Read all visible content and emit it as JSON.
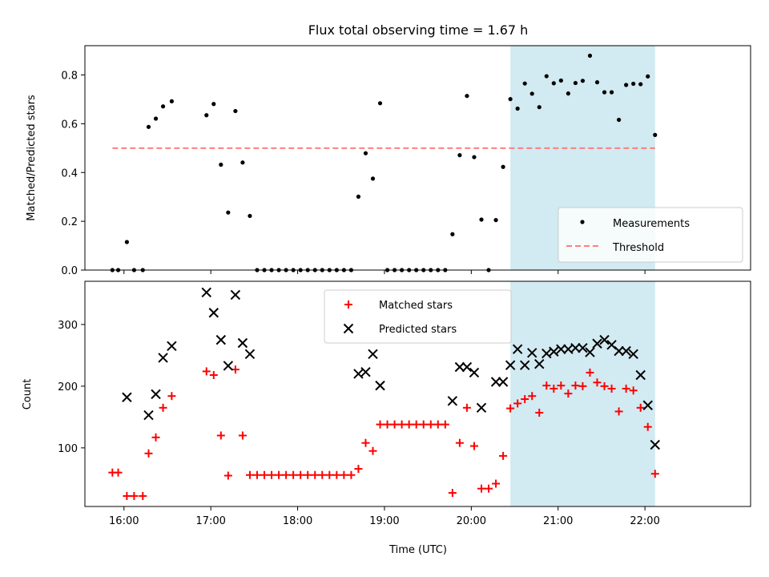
{
  "title": "Flux total observing time = 1.67 h",
  "colors": {
    "measurement": "#000000",
    "threshold": "#ff7f7f",
    "matched": "#ff0000",
    "predicted": "#000000",
    "highlight": "#add8e6"
  },
  "chart_data": [
    {
      "type": "scatter",
      "panel": "top",
      "ylabel": "Matched/Predicted stars",
      "ylim": [
        0,
        0.92
      ],
      "yticks": [
        0.0,
        0.2,
        0.4,
        0.6,
        0.8
      ],
      "ytick_labels": [
        "0.0",
        "0.2",
        "0.4",
        "0.6",
        "0.8"
      ],
      "legend_position": "lower right",
      "highlight_span": [
        "20:27",
        "22:07"
      ],
      "series": [
        {
          "name": "Measurements",
          "marker": "dot",
          "points": [
            [
              "15:52",
              0.0
            ],
            [
              "15:56",
              0.0
            ],
            [
              "16:02",
              0.115
            ],
            [
              "16:07",
              0.0
            ],
            [
              "16:13",
              0.0
            ],
            [
              "16:17",
              0.587
            ],
            [
              "16:22",
              0.621
            ],
            [
              "16:27",
              0.671
            ],
            [
              "16:33",
              0.692
            ],
            [
              "16:57",
              0.635
            ],
            [
              "17:02",
              0.681
            ],
            [
              "17:07",
              0.432
            ],
            [
              "17:12",
              0.236
            ],
            [
              "17:17",
              0.652
            ],
            [
              "17:22",
              0.441
            ],
            [
              "17:27",
              0.222
            ],
            [
              "17:32",
              0.0
            ],
            [
              "17:37",
              0.0
            ],
            [
              "17:42",
              0.0
            ],
            [
              "17:47",
              0.0
            ],
            [
              "17:52",
              0.0
            ],
            [
              "17:57",
              0.0
            ],
            [
              "18:02",
              0.0
            ],
            [
              "18:07",
              0.0
            ],
            [
              "18:12",
              0.0
            ],
            [
              "18:17",
              0.0
            ],
            [
              "18:22",
              0.0
            ],
            [
              "18:27",
              0.0
            ],
            [
              "18:32",
              0.0
            ],
            [
              "18:37",
              0.0
            ],
            [
              "18:42",
              0.301
            ],
            [
              "18:47",
              0.479
            ],
            [
              "18:52",
              0.375
            ],
            [
              "18:57",
              0.684
            ],
            [
              "19:02",
              0.0
            ],
            [
              "19:07",
              0.0
            ],
            [
              "19:12",
              0.0
            ],
            [
              "19:17",
              0.0
            ],
            [
              "19:22",
              0.0
            ],
            [
              "19:27",
              0.0
            ],
            [
              "19:32",
              0.0
            ],
            [
              "19:37",
              0.0
            ],
            [
              "19:42",
              0.0
            ],
            [
              "19:47",
              0.147
            ],
            [
              "19:52",
              0.471
            ],
            [
              "19:57",
              0.714
            ],
            [
              "20:02",
              0.463
            ],
            [
              "20:07",
              0.207
            ],
            [
              "20:12",
              0.0
            ],
            [
              "20:17",
              0.205
            ],
            [
              "20:22",
              0.423
            ],
            [
              "20:27",
              0.701
            ],
            [
              "20:32",
              0.662
            ],
            [
              "20:37",
              0.765
            ],
            [
              "20:42",
              0.723
            ],
            [
              "20:47",
              0.668
            ],
            [
              "20:52",
              0.795
            ],
            [
              "20:57",
              0.766
            ],
            [
              "21:02",
              0.777
            ],
            [
              "21:07",
              0.724
            ],
            [
              "21:12",
              0.767
            ],
            [
              "21:17",
              0.776
            ],
            [
              "21:22",
              0.879
            ],
            [
              "21:27",
              0.77
            ],
            [
              "21:32",
              0.729
            ],
            [
              "21:37",
              0.729
            ],
            [
              "21:42",
              0.616
            ],
            [
              "21:47",
              0.759
            ],
            [
              "21:52",
              0.764
            ],
            [
              "21:57",
              0.762
            ],
            [
              "22:02",
              0.794
            ],
            [
              "22:07",
              0.554
            ]
          ]
        },
        {
          "name": "Threshold",
          "style": "dashed",
          "points": [
            [
              "15:52",
              0.5
            ],
            [
              "22:07",
              0.5
            ]
          ]
        }
      ]
    },
    {
      "type": "scatter",
      "panel": "bottom",
      "ylabel": "Count",
      "xlabel": "Time (UTC)",
      "ylim": [
        5,
        370
      ],
      "yticks": [
        100,
        200,
        300
      ],
      "ytick_labels": [
        "100",
        "200",
        "300"
      ],
      "xlim": [
        "15:33",
        "23:13"
      ],
      "xticks": [
        "16:00",
        "17:00",
        "18:00",
        "19:00",
        "20:00",
        "21:00",
        "22:00"
      ],
      "xtick_labels": [
        "16:00",
        "17:00",
        "18:00",
        "19:00",
        "20:00",
        "21:00",
        "22:00"
      ],
      "legend_position": "upper center",
      "highlight_span": [
        "20:27",
        "22:07"
      ],
      "series": [
        {
          "name": "Matched stars",
          "marker": "plus",
          "points": [
            [
              "15:52",
              60
            ],
            [
              "15:56",
              60
            ],
            [
              "16:02",
              22
            ],
            [
              "16:07",
              22
            ],
            [
              "16:13",
              22
            ],
            [
              "16:17",
              91
            ],
            [
              "16:22",
              117
            ],
            [
              "16:27",
              165
            ],
            [
              "16:33",
              184
            ],
            [
              "16:57",
              224
            ],
            [
              "17:02",
              218
            ],
            [
              "17:07",
              120
            ],
            [
              "17:12",
              55
            ],
            [
              "17:17",
              227
            ],
            [
              "17:22",
              120
            ],
            [
              "17:27",
              56
            ],
            [
              "17:32",
              56
            ],
            [
              "17:37",
              56
            ],
            [
              "17:42",
              56
            ],
            [
              "17:47",
              56
            ],
            [
              "17:52",
              56
            ],
            [
              "17:57",
              56
            ],
            [
              "18:02",
              56
            ],
            [
              "18:07",
              56
            ],
            [
              "18:12",
              56
            ],
            [
              "18:17",
              56
            ],
            [
              "18:22",
              56
            ],
            [
              "18:27",
              56
            ],
            [
              "18:32",
              56
            ],
            [
              "18:37",
              56
            ],
            [
              "18:42",
              66
            ],
            [
              "18:47",
              108
            ],
            [
              "18:52",
              95
            ],
            [
              "18:57",
              138
            ],
            [
              "19:02",
              138
            ],
            [
              "19:07",
              138
            ],
            [
              "19:12",
              138
            ],
            [
              "19:17",
              138
            ],
            [
              "19:22",
              138
            ],
            [
              "19:27",
              138
            ],
            [
              "19:32",
              138
            ],
            [
              "19:37",
              138
            ],
            [
              "19:42",
              138
            ],
            [
              "19:47",
              27
            ],
            [
              "19:52",
              108
            ],
            [
              "19:57",
              165
            ],
            [
              "20:02",
              103
            ],
            [
              "20:07",
              34
            ],
            [
              "20:12",
              34
            ],
            [
              "20:17",
              42
            ],
            [
              "20:22",
              87
            ],
            [
              "20:27",
              164
            ],
            [
              "20:32",
              172
            ],
            [
              "20:37",
              179
            ],
            [
              "20:42",
              184
            ],
            [
              "20:47",
              157
            ],
            [
              "20:52",
              201
            ],
            [
              "20:57",
              196
            ],
            [
              "21:02",
              201
            ],
            [
              "21:07",
              188
            ],
            [
              "21:12",
              201
            ],
            [
              "21:17",
              200
            ],
            [
              "21:22",
              222
            ],
            [
              "21:27",
              206
            ],
            [
              "21:32",
              200
            ],
            [
              "21:37",
              196
            ],
            [
              "21:42",
              159
            ],
            [
              "21:47",
              196
            ],
            [
              "21:52",
              193
            ],
            [
              "21:57",
              165
            ],
            [
              "22:02",
              134
            ],
            [
              "22:07",
              58
            ]
          ]
        },
        {
          "name": "Predicted stars",
          "marker": "x",
          "points": [
            [
              "16:02",
              182
            ],
            [
              "16:17",
              153
            ],
            [
              "16:22",
              187
            ],
            [
              "16:27",
              246
            ],
            [
              "16:33",
              265
            ],
            [
              "16:57",
              352
            ],
            [
              "17:02",
              319
            ],
            [
              "17:07",
              275
            ],
            [
              "17:12",
              233
            ],
            [
              "17:17",
              348
            ],
            [
              "17:22",
              270
            ],
            [
              "17:27",
              252
            ],
            [
              "18:42",
              220
            ],
            [
              "18:47",
              223
            ],
            [
              "18:52",
              252
            ],
            [
              "18:57",
              201
            ],
            [
              "19:47",
              176
            ],
            [
              "19:52",
              231
            ],
            [
              "19:57",
              231
            ],
            [
              "20:02",
              222
            ],
            [
              "20:07",
              165
            ],
            [
              "20:17",
              207
            ],
            [
              "20:22",
              207
            ],
            [
              "20:27",
              234
            ],
            [
              "20:32",
              260
            ],
            [
              "20:37",
              234
            ],
            [
              "20:42",
              254
            ],
            [
              "20:47",
              236
            ],
            [
              "20:52",
              253
            ],
            [
              "20:57",
              256
            ],
            [
              "21:02",
              260
            ],
            [
              "21:07",
              260
            ],
            [
              "21:12",
              262
            ],
            [
              "21:17",
              262
            ],
            [
              "21:22",
              255
            ],
            [
              "21:27",
              269
            ],
            [
              "21:32",
              275
            ],
            [
              "21:37",
              267
            ],
            [
              "21:42",
              257
            ],
            [
              "21:47",
              257
            ],
            [
              "21:52",
              252
            ],
            [
              "21:57",
              218
            ],
            [
              "22:02",
              169
            ],
            [
              "22:07",
              105
            ]
          ]
        }
      ]
    }
  ]
}
